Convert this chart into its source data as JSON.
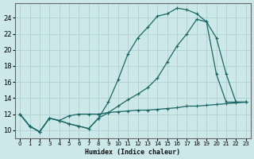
{
  "xlabel": "Humidex (Indice chaleur)",
  "bg_color": "#cde8e8",
  "grid_color": "#b0d0d0",
  "line_color": "#1a6666",
  "xlim": [
    -0.5,
    23.5
  ],
  "ylim": [
    9.0,
    25.8
  ],
  "xticks": [
    0,
    1,
    2,
    3,
    4,
    5,
    6,
    7,
    8,
    9,
    10,
    11,
    12,
    13,
    14,
    15,
    16,
    17,
    18,
    19,
    20,
    21,
    22,
    23
  ],
  "yticks": [
    10,
    12,
    14,
    16,
    18,
    20,
    22,
    24
  ],
  "line1_x": [
    0,
    1,
    2,
    3,
    4,
    5,
    6,
    7,
    8,
    9,
    10,
    11,
    12,
    13,
    14,
    15,
    16,
    17,
    18,
    19,
    20,
    21,
    22,
    23
  ],
  "line1_y": [
    12.0,
    10.5,
    9.8,
    11.5,
    11.2,
    10.8,
    10.5,
    10.2,
    11.5,
    13.5,
    16.3,
    19.5,
    21.5,
    22.8,
    24.2,
    24.5,
    25.2,
    25.0,
    24.5,
    23.5,
    21.5,
    17.0,
    13.5,
    13.5
  ],
  "line2_x": [
    0,
    1,
    2,
    3,
    4,
    5,
    6,
    7,
    8,
    9,
    10,
    11,
    12,
    13,
    14,
    15,
    16,
    17,
    18,
    19,
    20,
    21,
    22,
    23
  ],
  "line2_y": [
    12.0,
    10.5,
    9.8,
    11.5,
    11.2,
    10.8,
    10.5,
    10.2,
    11.5,
    12.2,
    13.0,
    13.8,
    14.5,
    15.3,
    16.5,
    18.5,
    20.5,
    22.0,
    23.8,
    23.5,
    17.0,
    13.5,
    13.5,
    13.5
  ],
  "line3_x": [
    0,
    1,
    2,
    3,
    4,
    5,
    6,
    7,
    8,
    9,
    10,
    11,
    12,
    13,
    14,
    15,
    16,
    17,
    18,
    19,
    20,
    21,
    22,
    23
  ],
  "line3_y": [
    12.0,
    10.5,
    9.8,
    11.5,
    11.2,
    11.8,
    12.0,
    12.0,
    12.0,
    12.2,
    12.3,
    12.4,
    12.5,
    12.5,
    12.6,
    12.7,
    12.8,
    13.0,
    13.0,
    13.1,
    13.2,
    13.3,
    13.4,
    13.5
  ]
}
